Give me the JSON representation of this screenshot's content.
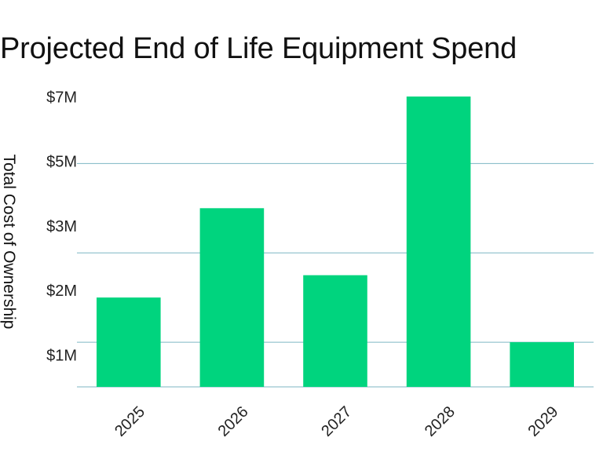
{
  "chart_data": {
    "type": "bar",
    "title": "Projected End of Life Equipment Spend",
    "xlabel": "",
    "ylabel": "Total Cost of Ownership",
    "categories": [
      "2025",
      "2026",
      "2027",
      "2028",
      "2029"
    ],
    "values": [
      2.0,
      4.0,
      2.5,
      6.5,
      1.0
    ],
    "y_ticks": [
      {
        "value": 1,
        "label": "$1M"
      },
      {
        "value": 2,
        "label": "$2M"
      },
      {
        "value": 3,
        "label": "$3M"
      },
      {
        "value": 5,
        "label": "$5M"
      },
      {
        "value": 7,
        "label": "$7M"
      }
    ],
    "gridlines": [
      1.0,
      3.0,
      5.0
    ],
    "ylim": [
      0,
      6.5
    ],
    "grid": true,
    "legend": "none",
    "bar_color": "#00D47E",
    "grid_color": "#7DB6C3",
    "x_tick_rotation_deg": -45
  }
}
